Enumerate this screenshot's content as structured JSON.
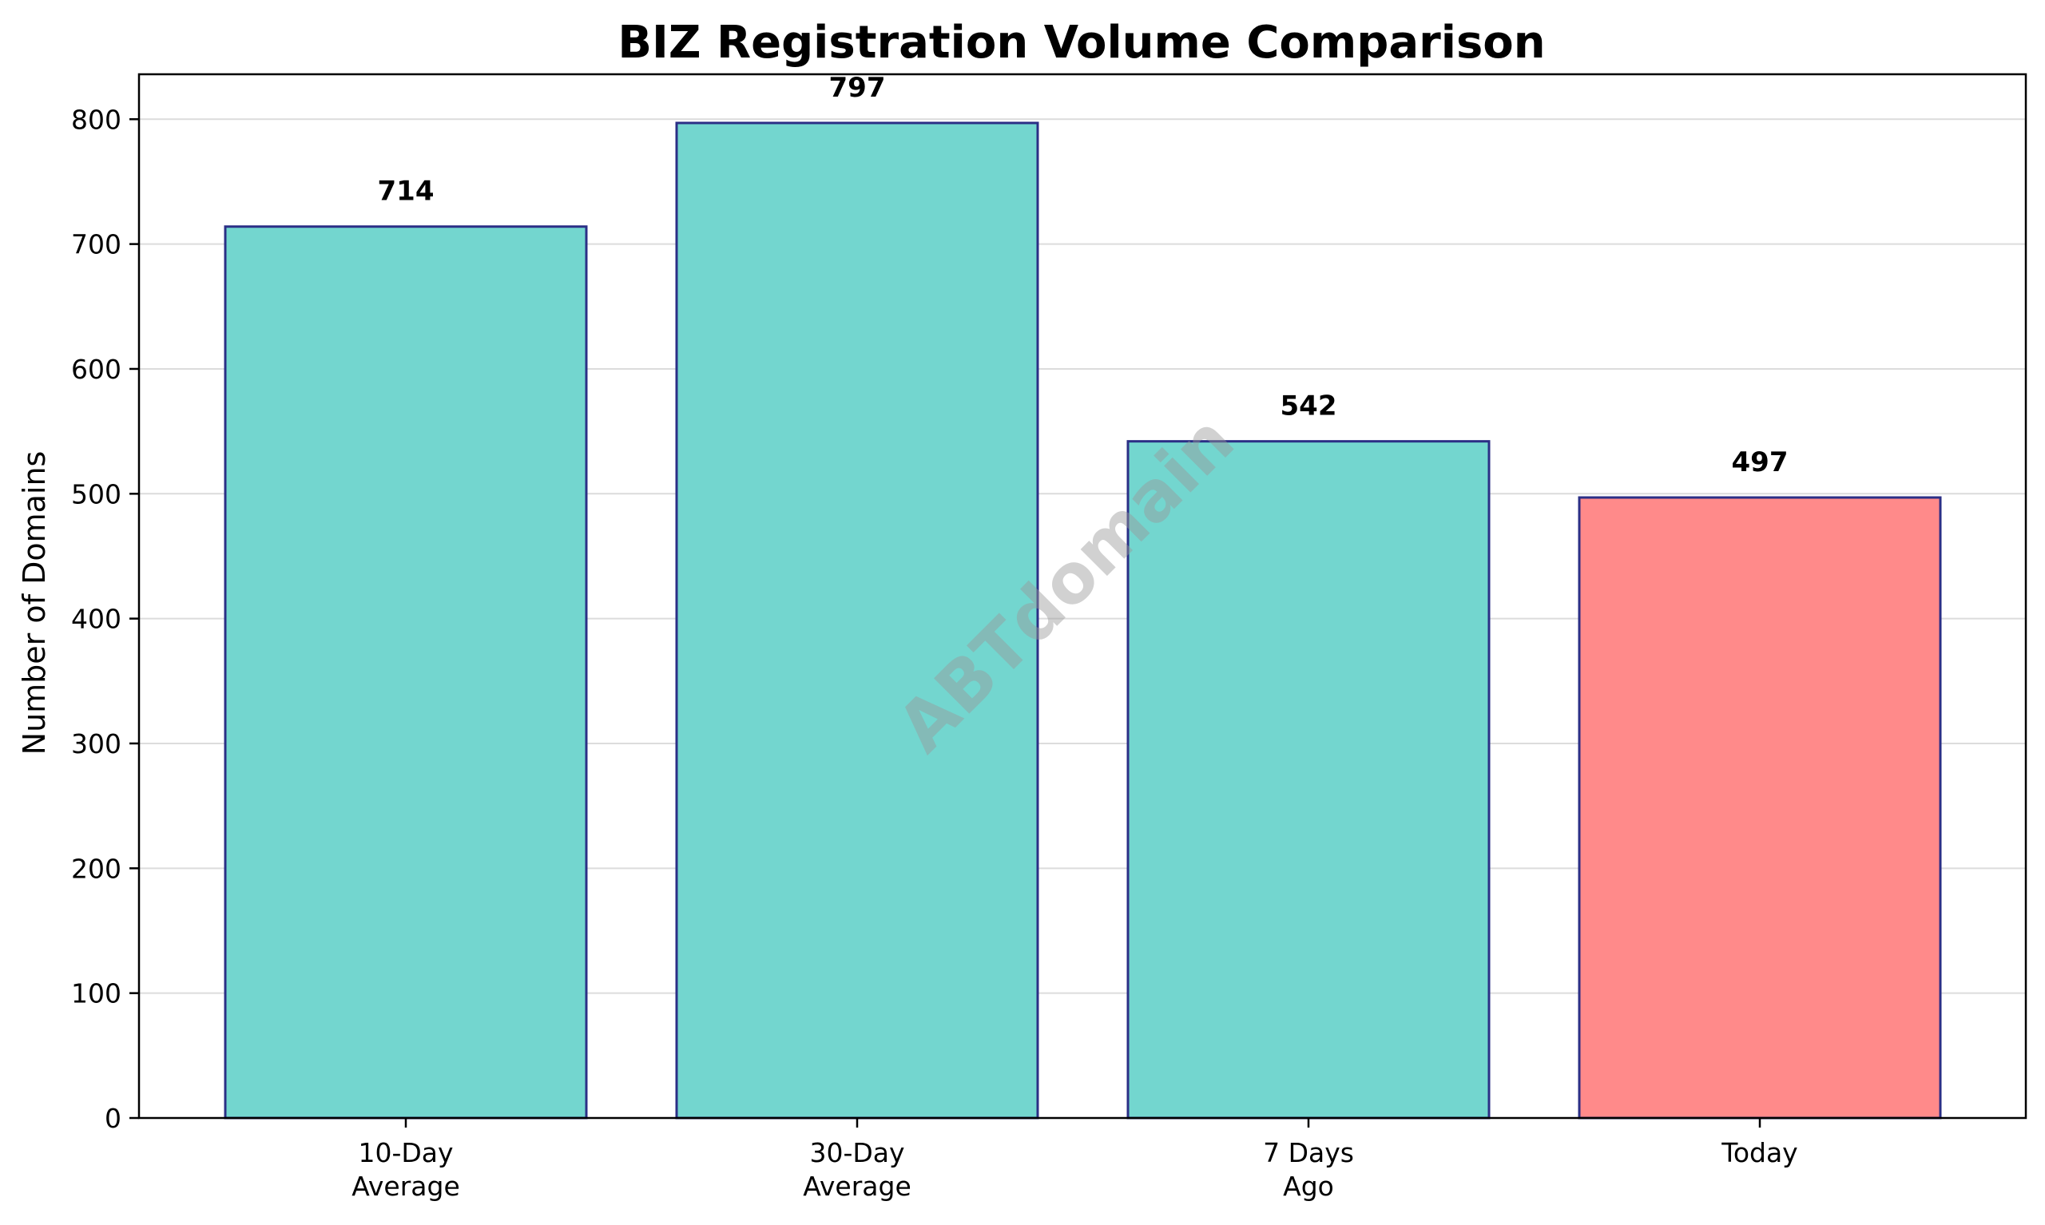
{
  "chart_data": {
    "type": "bar",
    "title": "BIZ Registration Volume Comparison",
    "xlabel": "",
    "ylabel": "Number of Domains",
    "categories": [
      [
        "10-Day",
        "Average"
      ],
      [
        "30-Day",
        "Average"
      ],
      [
        "7 Days",
        "Ago"
      ],
      [
        "Today"
      ]
    ],
    "values": [
      714,
      797,
      542,
      497
    ],
    "value_labels": [
      "714",
      "797",
      "542",
      "497"
    ],
    "bar_colors": [
      "#73d6cf",
      "#73d6cf",
      "#73d6cf",
      "#ff8a8a"
    ],
    "edge_color": "#2b2f86",
    "ylim": [
      0,
      836
    ],
    "yticks": [
      0,
      100,
      200,
      300,
      400,
      500,
      600,
      700,
      800
    ],
    "grid": "horizontal",
    "legend": "none",
    "watermark": "ABTdomain"
  }
}
